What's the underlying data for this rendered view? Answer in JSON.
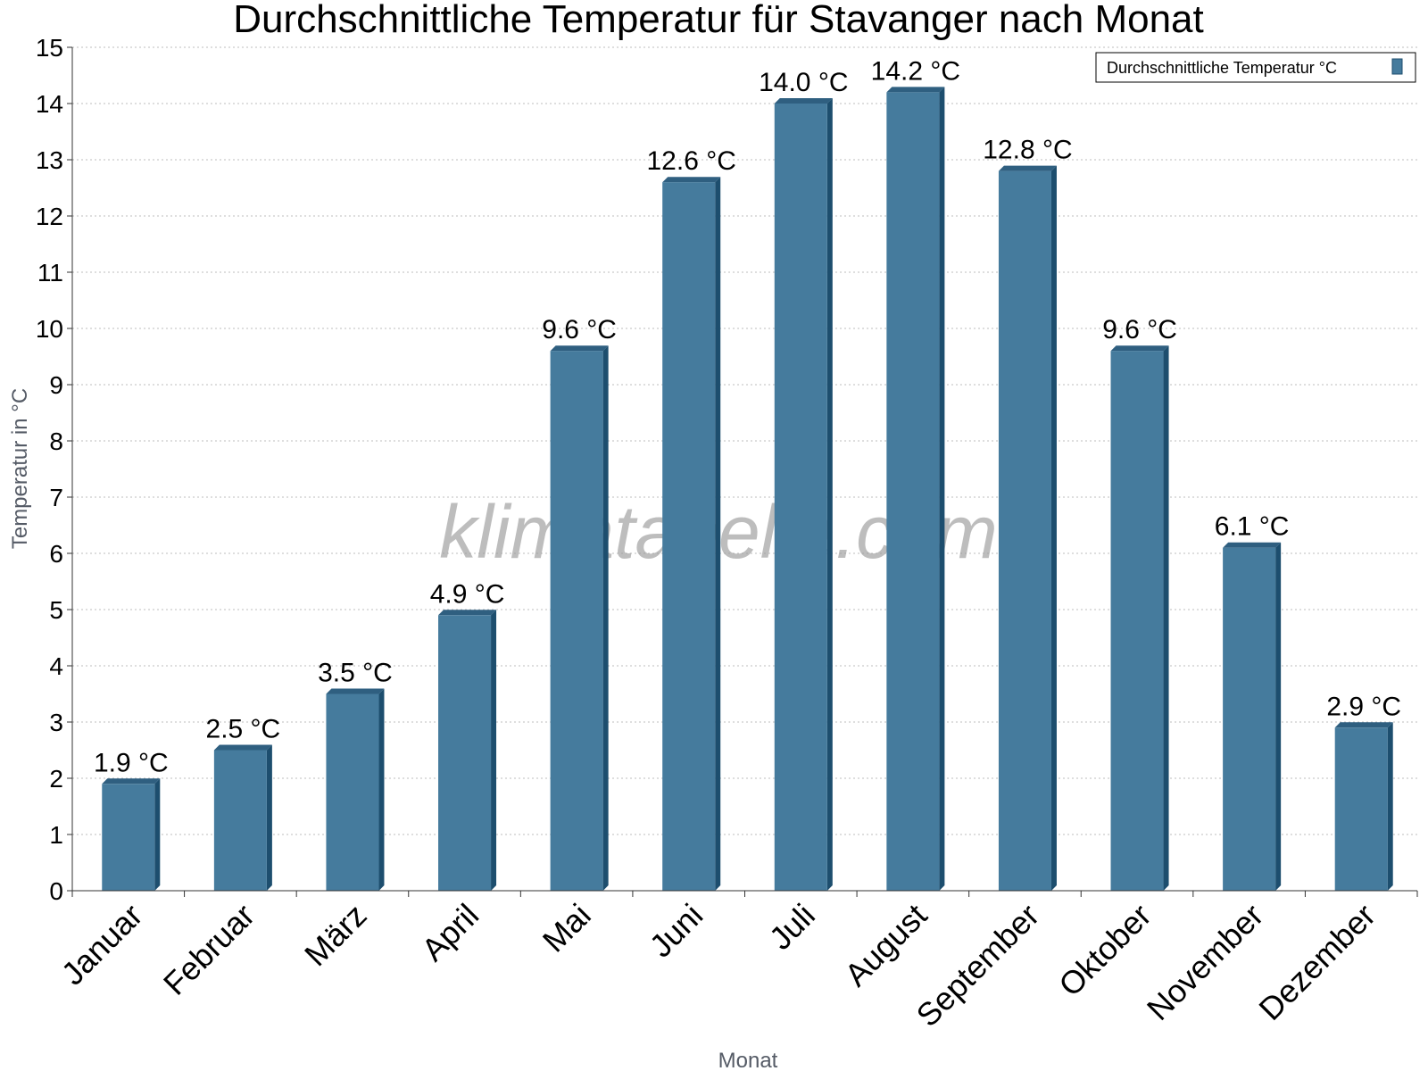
{
  "chart_data": {
    "type": "bar",
    "title": "Durchschnittliche Temperatur für Stavanger nach Monat",
    "xlabel": "Monat",
    "ylabel": "Temperatur in °C",
    "categories": [
      "Januar",
      "Februar",
      "März",
      "April",
      "Mai",
      "Juni",
      "Juli",
      "August",
      "September",
      "Oktober",
      "November",
      "Dezember"
    ],
    "series": [
      {
        "name": "Durchschnittliche Temperatur °C",
        "values": [
          1.9,
          2.5,
          3.5,
          4.9,
          9.6,
          12.6,
          14.0,
          14.2,
          12.8,
          9.6,
          6.1,
          2.9
        ],
        "labels": [
          "1.9 °C",
          "2.5 °C",
          "3.5 °C",
          "4.9 °C",
          "9.6 °C",
          "12.6 °C",
          "14.0 °C",
          "14.2 °C",
          "12.8 °C",
          "9.6 °C",
          "6.1 °C",
          "2.9 °C"
        ]
      }
    ],
    "ylim": [
      0,
      15
    ],
    "yticks": [
      "0",
      "1",
      "2",
      "3",
      "4",
      "5",
      "6",
      "7",
      "8",
      "9",
      "10",
      "11",
      "12",
      "13",
      "14",
      "15"
    ],
    "grid": true,
    "legend_position": "top-right",
    "colors": {
      "bar": "#457b9d",
      "bar_side": "#1d4e6e",
      "bar_top": "#2f5f80"
    }
  },
  "watermark": "klimatabelle.com"
}
